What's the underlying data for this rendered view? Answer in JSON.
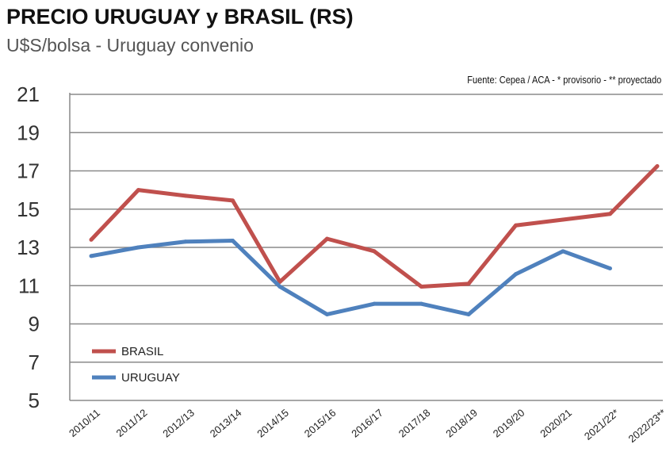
{
  "chart_data": {
    "type": "line",
    "title": "PRECIO URUGUAY y BRASIL (RS)",
    "subtitle": "U$S/bolsa  - Uruguay convenio",
    "source_note": "Fuente: Cepea  / ACA - * provisorio - ** proyectado",
    "categories": [
      "2010/11",
      "2011/12",
      "2012/13",
      "2013/14",
      "2014/15",
      "2015/16",
      "2016/17",
      "2017/18",
      "2018/19",
      "2019/20",
      "2020/21",
      "2021/22*",
      "2022/23**"
    ],
    "ylim": [
      5,
      21
    ],
    "yticks": [
      5,
      7,
      9,
      11,
      13,
      15,
      17,
      19,
      21
    ],
    "grid": true,
    "legend": "bottom-left",
    "series": [
      {
        "name": "BRASIL",
        "color": "#c0504d",
        "values": [
          13.4,
          16.0,
          15.7,
          15.45,
          11.2,
          13.45,
          12.8,
          10.95,
          11.1,
          14.15,
          14.45,
          14.75,
          17.25
        ]
      },
      {
        "name": "URUGUAY",
        "color": "#4f81bd",
        "values": [
          12.55,
          13.0,
          13.3,
          13.35,
          10.95,
          9.5,
          10.05,
          10.05,
          9.5,
          11.6,
          12.8,
          11.9,
          null
        ]
      }
    ]
  }
}
